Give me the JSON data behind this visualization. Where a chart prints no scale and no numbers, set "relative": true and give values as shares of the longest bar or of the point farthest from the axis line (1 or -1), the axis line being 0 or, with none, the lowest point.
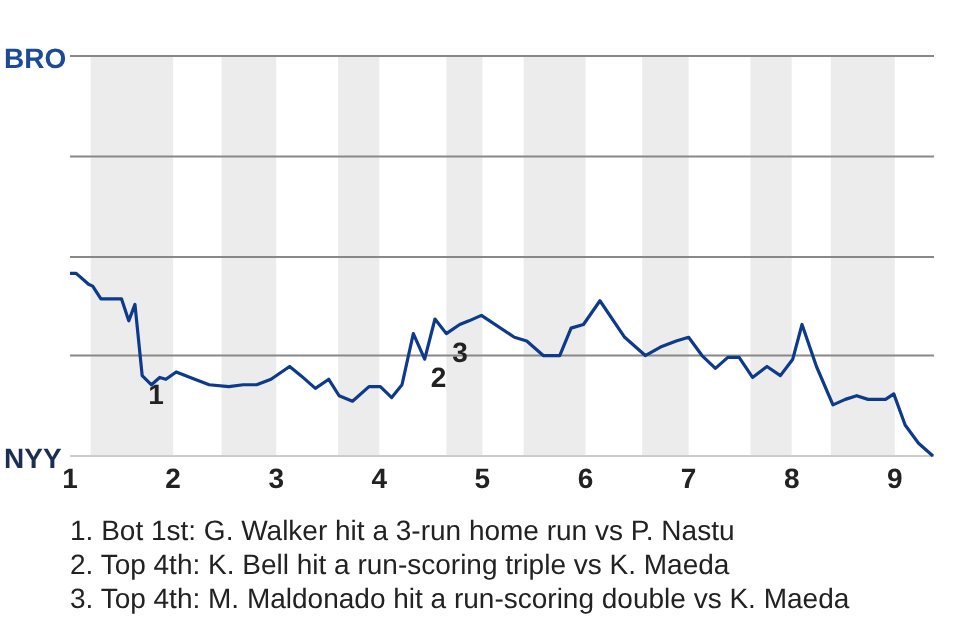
{
  "chart_data": {
    "type": "line",
    "relative": true,
    "x": [
      1,
      1.06,
      1.18,
      1.22,
      1.3,
      1.5,
      1.57,
      1.63,
      1.7,
      1.79,
      1.87,
      1.93,
      2.03,
      2.21,
      2.35,
      2.54,
      2.68,
      2.81,
      2.95,
      3.13,
      3.24,
      3.38,
      3.51,
      3.61,
      3.74,
      3.9,
      4.01,
      4.12,
      4.22,
      4.33,
      4.44,
      4.54,
      4.65,
      4.78,
      4.87,
      4.99,
      5.31,
      5.43,
      5.59,
      5.75,
      5.86,
      5.98,
      6.14,
      6.38,
      6.58,
      6.74,
      6.88,
      7,
      7.13,
      7.26,
      7.38,
      7.49,
      7.62,
      7.76,
      7.89,
      8.01,
      8.1,
      8.24,
      8.4,
      8.52,
      8.63,
      8.74,
      8.91,
      8.99,
      9.1,
      9.23,
      9.37
    ],
    "series": [
      {
        "color": "#0d3a8a",
        "values": [
          1,
          1,
          0.94,
          0.93,
          0.86,
          0.86,
          0.74,
          0.83,
          0.44,
          0.39,
          0.43,
          0.42,
          0.46,
          0.42,
          0.39,
          0.38,
          0.39,
          0.39,
          0.42,
          0.49,
          0.44,
          0.37,
          0.42,
          0.33,
          0.3,
          0.38,
          0.38,
          0.32,
          0.39,
          0.67,
          0.53,
          0.75,
          0.67,
          0.72,
          0.74,
          0.77,
          0.65,
          0.63,
          0.55,
          0.55,
          0.7,
          0.72,
          0.85,
          0.65,
          0.55,
          0.6,
          0.63,
          0.65,
          0.55,
          0.48,
          0.54,
          0.54,
          0.43,
          0.49,
          0.44,
          0.53,
          0.72,
          0.49,
          0.28,
          0.31,
          0.33,
          0.31,
          0.31,
          0.34,
          0.17,
          0.07,
          0
        ]
      }
    ],
    "xlim": [
      1,
      9.38
    ],
    "xticks": [
      1,
      2,
      3,
      4,
      5,
      6,
      7,
      8,
      9
    ],
    "ref_lines": [
      {
        "axis": "y",
        "value": 0.55,
        "color": "#888888"
      },
      {
        "axis": "y",
        "value": 1.09,
        "color": "#888888"
      },
      {
        "axis": "y",
        "value": 1.64,
        "color": "#888888"
      },
      {
        "axis": "y",
        "value": 2.19,
        "label": "BRO",
        "color": "#888888"
      }
    ],
    "bands": [
      {
        "axis": "x",
        "from": 1.2,
        "to": 2,
        "color": "#ececec"
      },
      {
        "axis": "x",
        "from": 2.47,
        "to": 3,
        "color": "#ececec"
      },
      {
        "axis": "x",
        "from": 3.6,
        "to": 4,
        "color": "#ececec"
      },
      {
        "axis": "x",
        "from": 4.65,
        "to": 5,
        "color": "#ececec"
      },
      {
        "axis": "x",
        "from": 5.4,
        "to": 6,
        "color": "#ececec"
      },
      {
        "axis": "x",
        "from": 6.55,
        "to": 7,
        "color": "#ececec"
      },
      {
        "axis": "x",
        "from": 7.6,
        "to": 8,
        "color": "#ececec"
      },
      {
        "axis": "x",
        "from": 8.38,
        "to": 9,
        "color": "#ececec"
      }
    ],
    "annotations": [
      {
        "text": "1",
        "x": 1.7,
        "y": 0.44
      },
      {
        "text": "2",
        "x": 4.44,
        "y": 0.53
      },
      {
        "text": "3",
        "x": 4.65,
        "y": 0.67
      },
      "NYY",
      "1. Bot 1st: G. Walker hit a 3-run home run vs P. Nastu",
      "2. Top 4th: K. Bell hit a run-scoring triple vs K. Maeda",
      "3. Top 4th: M. Maldonado hit a run-scoring double vs K. Maeda"
    ]
  }
}
